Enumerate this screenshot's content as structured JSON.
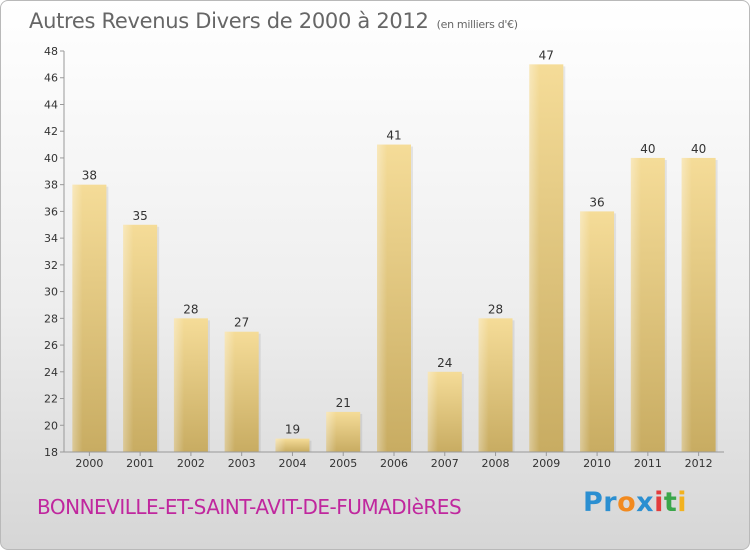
{
  "chart_data": {
    "type": "bar",
    "title": "Autres Revenus Divers de 2000 à 2012",
    "subtitle": "(en milliers d'€)",
    "categories": [
      "2000",
      "2001",
      "2002",
      "2003",
      "2004",
      "2005",
      "2006",
      "2007",
      "2008",
      "2009",
      "2010",
      "2011",
      "2012"
    ],
    "values": [
      38,
      35,
      28,
      27,
      19,
      21,
      41,
      24,
      28,
      47,
      36,
      40,
      40
    ],
    "ylim": [
      18,
      48
    ],
    "yticks": [
      18,
      20,
      22,
      24,
      26,
      28,
      30,
      32,
      34,
      36,
      38,
      40,
      42,
      44,
      46,
      48
    ],
    "grid": false,
    "bar_color_top": "#f5dc98",
    "bar_color_bottom": "#c8ac62"
  },
  "footer": {
    "commune": "BONNEVILLE-ET-SAINT-AVIT-DE-FUMADIèRES",
    "logo": {
      "p1": "Pr",
      "o": "o",
      "x": "x",
      "i1": "i",
      "t": "t",
      "i2": "i"
    }
  },
  "colors": {
    "commune": "#c0279e",
    "text": "#666666"
  }
}
